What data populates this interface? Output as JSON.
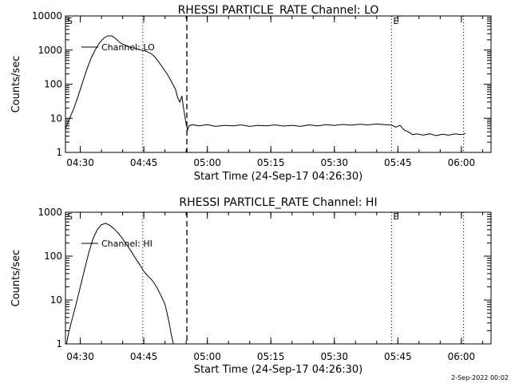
{
  "footer": {
    "timestamp": "2-Sep-2022 00:02"
  },
  "chart_data": [
    {
      "type": "line",
      "title": "RHESSI PARTICLE_RATE Channel: LO",
      "xlabel": "Start Time (24-Sep-17 04:26:30)",
      "ylabel": "Counts/sec",
      "yscale": "log",
      "ylim": [
        1,
        10000
      ],
      "yticks": [
        {
          "value": 1,
          "label": "1"
        },
        {
          "value": 10,
          "label": "10"
        },
        {
          "value": 100,
          "label": "100"
        },
        {
          "value": 1000,
          "label": "1000"
        },
        {
          "value": 10000,
          "label": "10000"
        }
      ],
      "xlim": [
        "04:26:30",
        "06:07:00"
      ],
      "xticks": [
        "04:30",
        "04:45",
        "05:00",
        "05:15",
        "05:30",
        "05:45",
        "06:00"
      ],
      "legend": {
        "label": "Channel: LO",
        "placement": "top-left"
      },
      "vlines": [
        {
          "x": "04:44:45",
          "style": "dotted"
        },
        {
          "x": "04:55:10",
          "style": "dashed"
        },
        {
          "x": "05:43:30",
          "style": "dotted"
        },
        {
          "x": "06:00:30",
          "style": "dotted"
        }
      ],
      "markers": [
        {
          "text": "S",
          "x": "04:26:30"
        },
        {
          "text": "E",
          "x": "05:43:30"
        }
      ],
      "series": [
        {
          "name": "Channel: LO",
          "points": [
            [
              "04:26:30",
              5
            ],
            [
              "04:27:30",
              10
            ],
            [
              "04:28:30",
              20
            ],
            [
              "04:29:30",
              45
            ],
            [
              "04:30:30",
              110
            ],
            [
              "04:31:30",
              260
            ],
            [
              "04:32:30",
              560
            ],
            [
              "04:33:30",
              1000
            ],
            [
              "04:34:30",
              1600
            ],
            [
              "04:35:30",
              2200
            ],
            [
              "04:36:30",
              2600
            ],
            [
              "04:37:30",
              2600
            ],
            [
              "04:38:30",
              2100
            ],
            [
              "04:39:30",
              1600
            ],
            [
              "04:40:30",
              1400
            ],
            [
              "04:41:30",
              1250
            ],
            [
              "04:42:30",
              1150
            ],
            [
              "04:43:30",
              1080
            ],
            [
              "04:44:30",
              1000
            ],
            [
              "04:45:30",
              920
            ],
            [
              "04:46:30",
              820
            ],
            [
              "04:47:30",
              650
            ],
            [
              "04:48:30",
              450
            ],
            [
              "04:49:30",
              300
            ],
            [
              "04:50:30",
              200
            ],
            [
              "04:51:30",
              120
            ],
            [
              "04:52:30",
              70
            ],
            [
              "04:53:00",
              40
            ],
            [
              "04:53:30",
              30
            ],
            [
              "04:54:00",
              45
            ],
            [
              "04:54:20",
              22
            ],
            [
              "04:54:40",
              12
            ],
            [
              "04:55:00",
              7
            ],
            [
              "04:55:20",
              4.5
            ],
            [
              "04:55:40",
              6
            ],
            [
              "04:56:30",
              6.5
            ],
            [
              "04:58:00",
              6
            ],
            [
              "05:00:00",
              6.5
            ],
            [
              "05:02:00",
              5.8
            ],
            [
              "05:04:00",
              6.2
            ],
            [
              "05:06:00",
              6
            ],
            [
              "05:08:00",
              6.4
            ],
            [
              "05:10:00",
              5.8
            ],
            [
              "05:12:00",
              6.2
            ],
            [
              "05:14:00",
              6
            ],
            [
              "05:16:00",
              6.4
            ],
            [
              "05:18:00",
              5.9
            ],
            [
              "05:20:00",
              6.2
            ],
            [
              "05:22:00",
              5.8
            ],
            [
              "05:24:00",
              6.4
            ],
            [
              "05:26:00",
              6
            ],
            [
              "05:28:00",
              6.5
            ],
            [
              "05:30:00",
              6.2
            ],
            [
              "05:32:00",
              6.6
            ],
            [
              "05:34:00",
              6.3
            ],
            [
              "05:36:00",
              6.7
            ],
            [
              "05:38:00",
              6.4
            ],
            [
              "05:40:00",
              6.8
            ],
            [
              "05:42:00",
              6.5
            ],
            [
              "05:43:30",
              6.3
            ],
            [
              "05:44:30",
              5.5
            ],
            [
              "05:45:30",
              6.2
            ],
            [
              "05:46:30",
              4.5
            ],
            [
              "05:47:30",
              4
            ],
            [
              "05:48:30",
              3.3
            ],
            [
              "05:49:30",
              3.5
            ],
            [
              "05:51:00",
              3.2
            ],
            [
              "05:52:30",
              3.5
            ],
            [
              "05:54:00",
              3.1
            ],
            [
              "05:55:30",
              3.4
            ],
            [
              "05:57:00",
              3.2
            ],
            [
              "05:58:30",
              3.5
            ],
            [
              "06:00:00",
              3.3
            ],
            [
              "06:01:00",
              3.6
            ]
          ]
        }
      ]
    },
    {
      "type": "line",
      "title": "RHESSI PARTICLE_RATE Channel: HI",
      "xlabel": "Start Time (24-Sep-17 04:26:30)",
      "ylabel": "Counts/sec",
      "yscale": "log",
      "ylim": [
        1,
        1000
      ],
      "yticks": [
        {
          "value": 1,
          "label": "1"
        },
        {
          "value": 10,
          "label": "10"
        },
        {
          "value": 100,
          "label": "100"
        },
        {
          "value": 1000,
          "label": "1000"
        }
      ],
      "xlim": [
        "04:26:30",
        "06:07:00"
      ],
      "xticks": [
        "04:30",
        "04:45",
        "05:00",
        "05:15",
        "05:30",
        "05:45",
        "06:00"
      ],
      "legend": {
        "label": "Channel: HI",
        "placement": "top-left"
      },
      "vlines": [
        {
          "x": "04:44:45",
          "style": "dotted"
        },
        {
          "x": "04:55:10",
          "style": "dashed"
        },
        {
          "x": "05:43:30",
          "style": "dotted"
        },
        {
          "x": "06:00:30",
          "style": "dotted"
        }
      ],
      "markers": [
        {
          "text": "S",
          "x": "04:26:30"
        },
        {
          "text": "E",
          "x": "05:43:30"
        }
      ],
      "series": [
        {
          "name": "Channel: HI",
          "points": [
            [
              "04:26:45",
              1
            ],
            [
              "04:27:15",
              1.8
            ],
            [
              "04:28:00",
              3.5
            ],
            [
              "04:29:00",
              8
            ],
            [
              "04:30:00",
              20
            ],
            [
              "04:31:00",
              50
            ],
            [
              "04:32:00",
              120
            ],
            [
              "04:33:00",
              250
            ],
            [
              "04:34:00",
              400
            ],
            [
              "04:35:00",
              520
            ],
            [
              "04:36:00",
              560
            ],
            [
              "04:37:00",
              500
            ],
            [
              "04:38:00",
              420
            ],
            [
              "04:39:00",
              330
            ],
            [
              "04:40:00",
              250
            ],
            [
              "04:41:00",
              180
            ],
            [
              "04:42:00",
              130
            ],
            [
              "04:43:00",
              90
            ],
            [
              "04:44:00",
              65
            ],
            [
              "04:45:00",
              45
            ],
            [
              "04:46:00",
              35
            ],
            [
              "04:47:00",
              28
            ],
            [
              "04:48:00",
              20
            ],
            [
              "04:49:00",
              13
            ],
            [
              "04:50:00",
              8
            ],
            [
              "04:50:30",
              5
            ],
            [
              "04:51:00",
              3
            ],
            [
              "04:51:30",
              1.6
            ],
            [
              "04:52:00",
              1
            ]
          ]
        }
      ]
    }
  ]
}
